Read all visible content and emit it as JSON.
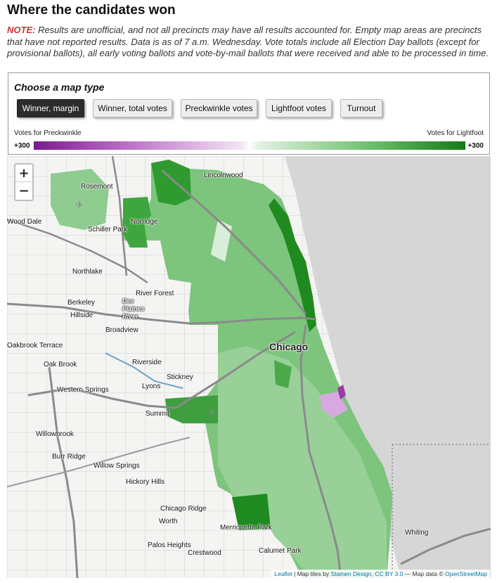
{
  "header": {
    "title": "Where the candidates won",
    "note_label": "NOTE:",
    "note_text": " Results are unofficial, and not all precincts may have all results accounted for. Empty map areas are precincts that have not reported results. Data is as of 7 a.m. Wednesday. Vote totals include all Election Day ballots (except for provisional ballots), all early voting ballots and vote-by-mail ballots that were received and able to be processed in time."
  },
  "panel": {
    "title": "Choose a map type",
    "buttons": [
      {
        "label": "Winner, margin",
        "active": true
      },
      {
        "label": "Winner, total votes",
        "active": false
      },
      {
        "label": "Preckwinkle votes",
        "active": false
      },
      {
        "label": "Lightfoot votes",
        "active": false
      },
      {
        "label": "Turnout",
        "active": false
      }
    ],
    "legend": {
      "left_label": "Votes for Preckwinkle",
      "right_label": "Votes for Lightfoot",
      "left_value": "+300",
      "right_value": "+300",
      "colors": {
        "preckwinkle": "#7b1a8c",
        "lightfoot": "#157a15",
        "neutral": "#ffffff"
      }
    }
  },
  "map": {
    "zoom_in": "+",
    "zoom_out": "−",
    "places": {
      "lincolnwood": "Lincolnwood",
      "rosemont": "Rosemont",
      "wood_dale": "Wood Dale",
      "norridge": "Norridge",
      "schiller_park": "Schiller Park",
      "northlake": "Northlake",
      "river_forest": "River Forest",
      "des_plaines_river": "Des Plaines River",
      "berkeley": "Berkeley",
      "hillside": "Hillside",
      "broadview": "Broadview",
      "chicago": "Chicago",
      "oakbrook_terrace": "Oakbrook Terrace",
      "oak_brook": "Oak Brook",
      "riverside": "Riverside",
      "stickney": "Stickney",
      "lyons": "Lyons",
      "western_springs": "Western Springs",
      "summit": "Summit",
      "willowbrook": "Willowbrook",
      "burr_ridge": "Burr Ridge",
      "willow_springs": "Willow Springs",
      "hickory_hills": "Hickory Hills",
      "chicago_ridge": "Chicago Ridge",
      "worth": "Worth",
      "merrionette_park": "Merrionette Park",
      "palos_heights": "Palos Heights",
      "crestwood": "Crestwood",
      "calumet_park": "Calumet Park",
      "whiting": "Whiting"
    },
    "attribution": {
      "leaflet": "Leaflet",
      "sep1": " | Map tiles by ",
      "stamen": "Stamen Design",
      "sep2": ", ",
      "license": "CC BY 3.0",
      "sep3": " — Map data © ",
      "osm": "OpenStreetMap"
    }
  }
}
